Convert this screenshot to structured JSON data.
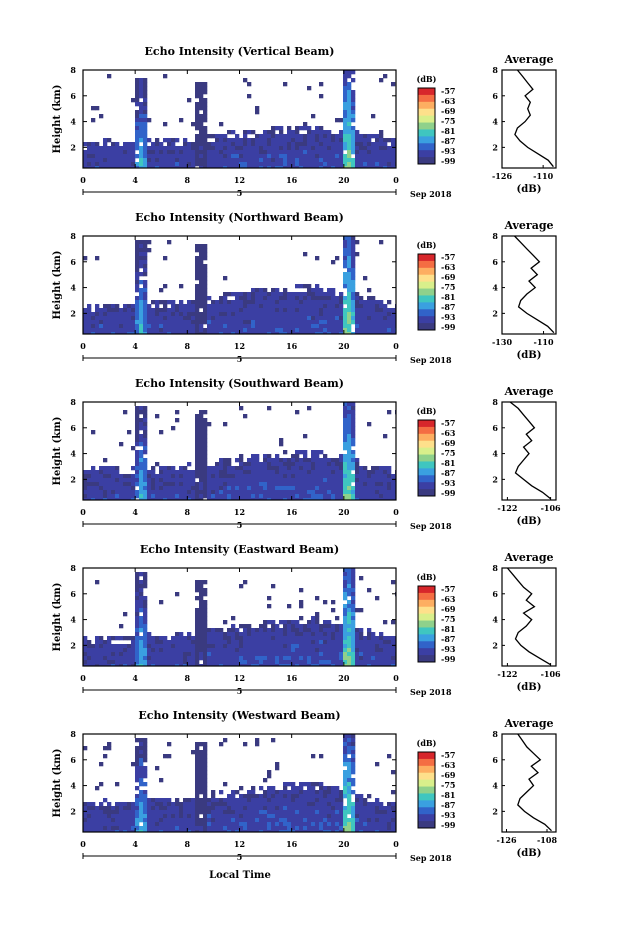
{
  "figure": {
    "x_axis_label": "Local Time",
    "date_label": "Sep 2018",
    "day_label": "5",
    "x_ticks": [
      "0",
      "4",
      "8",
      "12",
      "16",
      "20",
      "0"
    ],
    "y_axis_label": "Height (km)",
    "y_ticks": [
      "8",
      "6",
      "4",
      "2"
    ],
    "colorbar_unit": "(dB)",
    "colorbar_labels": [
      "-57",
      "-63",
      "-69",
      "-75",
      "-81",
      "-87",
      "-93",
      "-99"
    ],
    "colorbar_colors": [
      "#d7262b",
      "#f46d43",
      "#fdae61",
      "#fee08b",
      "#d9ef8b",
      "#8fd18b",
      "#3fc6c0",
      "#3aa0e0",
      "#3163c9",
      "#3b3fa3",
      "#3a3a80"
    ],
    "profile_title": "Average",
    "profile_xlabel": "(dB)"
  },
  "chart_data": [
    {
      "type": "heatmap",
      "title": "Echo Intensity (Vertical Beam)",
      "xlabel": "Local Time",
      "ylabel": "Height (km)",
      "xlim": [
        0,
        24
      ],
      "ylim": [
        0.4,
        8
      ],
      "clim": [
        -99,
        -57
      ],
      "base_layer_top_km": [
        2.4,
        2.6,
        2.5,
        2.7,
        2.6,
        2.8,
        3.0,
        3.2,
        3.3,
        3.5,
        3.6,
        3.7,
        3.5,
        3.3,
        3.0,
        2.6
      ],
      "convective_columns": [
        {
          "start_h": 4.0,
          "end_h": 5.0,
          "top_km": 7.4,
          "peak_dB": -81
        },
        {
          "start_h": 8.5,
          "end_h": 9.5,
          "top_km": 7.2,
          "peak_dB": -93
        },
        {
          "start_h": 19.8,
          "end_h": 20.8,
          "top_km": 8.0,
          "peak_dB": -75
        }
      ],
      "profile": {
        "title": "Average",
        "xlabel": "(dB)",
        "xticks": [
          "-126",
          "-110"
        ],
        "xlim": [
          -126,
          -105
        ],
        "height_km": [
          0.5,
          1,
          1.5,
          2,
          2.5,
          3,
          3.5,
          4,
          4.5,
          5,
          5.5,
          6,
          6.5,
          7,
          7.5,
          8
        ],
        "dB": [
          -106,
          -108,
          -112,
          -116,
          -119,
          -121,
          -120,
          -117,
          -115,
          -116,
          -115,
          -117,
          -114,
          -116,
          -118,
          -120
        ]
      }
    },
    {
      "type": "heatmap",
      "title": "Echo Intensity (Northward Beam)",
      "xlabel": "Local Time",
      "ylabel": "Height (km)",
      "xlim": [
        0,
        24
      ],
      "ylim": [
        0.4,
        8
      ],
      "clim": [
        -99,
        -57
      ],
      "base_layer_top_km": [
        2.6,
        2.8,
        2.8,
        3.0,
        2.9,
        3.1,
        3.3,
        3.6,
        3.8,
        4.0,
        4.1,
        4.2,
        3.9,
        3.6,
        3.2,
        2.8
      ],
      "convective_columns": [
        {
          "start_h": 4.0,
          "end_h": 5.0,
          "top_km": 7.6,
          "peak_dB": -81
        },
        {
          "start_h": 8.5,
          "end_h": 9.5,
          "top_km": 7.3,
          "peak_dB": -93
        },
        {
          "start_h": 19.8,
          "end_h": 20.8,
          "top_km": 8.0,
          "peak_dB": -75
        }
      ],
      "profile": {
        "title": "Average",
        "xlabel": "(dB)",
        "xticks": [
          "-130",
          "-110"
        ],
        "xlim": [
          -130,
          -104
        ],
        "height_km": [
          0.5,
          1,
          1.5,
          2,
          2.5,
          3,
          3.5,
          4,
          4.5,
          5,
          5.5,
          6,
          6.5,
          7,
          7.5,
          8
        ],
        "dB": [
          -105,
          -108,
          -113,
          -118,
          -122,
          -121,
          -118,
          -114,
          -117,
          -113,
          -116,
          -112,
          -115,
          -118,
          -121,
          -124
        ]
      }
    },
    {
      "type": "heatmap",
      "title": "Echo Intensity (Southward Beam)",
      "xlabel": "Local Time",
      "ylabel": "Height (km)",
      "xlim": [
        0,
        24
      ],
      "ylim": [
        0.4,
        8
      ],
      "clim": [
        -99,
        -57
      ],
      "base_layer_top_km": [
        2.8,
        3.0,
        2.9,
        3.1,
        3.0,
        3.2,
        3.4,
        3.6,
        3.8,
        4.0,
        4.2,
        4.3,
        4.0,
        3.6,
        3.2,
        2.8
      ],
      "convective_columns": [
        {
          "start_h": 4.0,
          "end_h": 5.0,
          "top_km": 7.6,
          "peak_dB": -81
        },
        {
          "start_h": 8.5,
          "end_h": 9.5,
          "top_km": 7.4,
          "peak_dB": -93
        },
        {
          "start_h": 19.8,
          "end_h": 20.8,
          "top_km": 8.0,
          "peak_dB": -75
        }
      ],
      "profile": {
        "title": "Average",
        "xlabel": "(dB)",
        "xticks": [
          "-122",
          "-106"
        ],
        "xlim": [
          -124,
          -104
        ],
        "height_km": [
          0.5,
          1,
          1.5,
          2,
          2.5,
          3,
          3.5,
          4,
          4.5,
          5,
          5.5,
          6,
          6.5,
          7,
          7.5,
          8
        ],
        "dB": [
          -106,
          -109,
          -113,
          -116,
          -119,
          -118,
          -116,
          -114,
          -116,
          -113,
          -115,
          -112,
          -114,
          -116,
          -118,
          -121
        ]
      }
    },
    {
      "type": "heatmap",
      "title": "Echo Intensity (Eastward Beam)",
      "xlabel": "Local Time",
      "ylabel": "Height (km)",
      "xlim": [
        0,
        24
      ],
      "ylim": [
        0.4,
        8
      ],
      "clim": [
        -99,
        -57
      ],
      "base_layer_top_km": [
        2.6,
        2.8,
        2.7,
        2.9,
        2.8,
        3.0,
        3.3,
        3.5,
        3.7,
        3.9,
        4.1,
        4.2,
        3.9,
        3.5,
        3.1,
        2.6
      ],
      "convective_columns": [
        {
          "start_h": 4.0,
          "end_h": 5.0,
          "top_km": 7.6,
          "peak_dB": -81
        },
        {
          "start_h": 8.5,
          "end_h": 9.5,
          "top_km": 7.2,
          "peak_dB": -93
        },
        {
          "start_h": 19.8,
          "end_h": 20.8,
          "top_km": 8.0,
          "peak_dB": -75
        }
      ],
      "profile": {
        "title": "Average",
        "xlabel": "(dB)",
        "xticks": [
          "-122",
          "-106"
        ],
        "xlim": [
          -124,
          -104
        ],
        "height_km": [
          0.5,
          1,
          1.5,
          2,
          2.5,
          3,
          3.5,
          4,
          4.5,
          5,
          5.5,
          6,
          6.5,
          7,
          7.5,
          8
        ],
        "dB": [
          -106,
          -110,
          -114,
          -117,
          -119,
          -118,
          -115,
          -113,
          -116,
          -112,
          -115,
          -113,
          -116,
          -118,
          -120,
          -122
        ]
      }
    },
    {
      "type": "heatmap",
      "title": "Echo Intensity (Westward Beam)",
      "xlabel": "Local Time",
      "ylabel": "Height (km)",
      "xlim": [
        0,
        24
      ],
      "ylim": [
        0.4,
        8
      ],
      "clim": [
        -99,
        -57
      ],
      "base_layer_top_km": [
        2.7,
        2.9,
        2.8,
        3.0,
        2.9,
        3.1,
        3.4,
        3.6,
        3.8,
        4.0,
        4.2,
        4.3,
        4.0,
        3.6,
        3.2,
        2.7
      ],
      "convective_columns": [
        {
          "start_h": 4.0,
          "end_h": 5.0,
          "top_km": 7.8,
          "peak_dB": -81
        },
        {
          "start_h": 8.5,
          "end_h": 9.5,
          "top_km": 7.3,
          "peak_dB": -93
        },
        {
          "start_h": 19.8,
          "end_h": 20.8,
          "top_km": 8.0,
          "peak_dB": -75
        }
      ],
      "profile": {
        "title": "Average",
        "xlabel": "(dB)",
        "xticks": [
          "-126",
          "-108"
        ],
        "xlim": [
          -128,
          -104
        ],
        "height_km": [
          0.5,
          1,
          1.5,
          2,
          2.5,
          3,
          3.5,
          4,
          4.5,
          5,
          5.5,
          6,
          6.5,
          7,
          7.5,
          8
        ],
        "dB": [
          -106,
          -109,
          -114,
          -118,
          -121,
          -120,
          -117,
          -114,
          -116,
          -112,
          -115,
          -111,
          -114,
          -117,
          -119,
          -121
        ]
      }
    }
  ]
}
